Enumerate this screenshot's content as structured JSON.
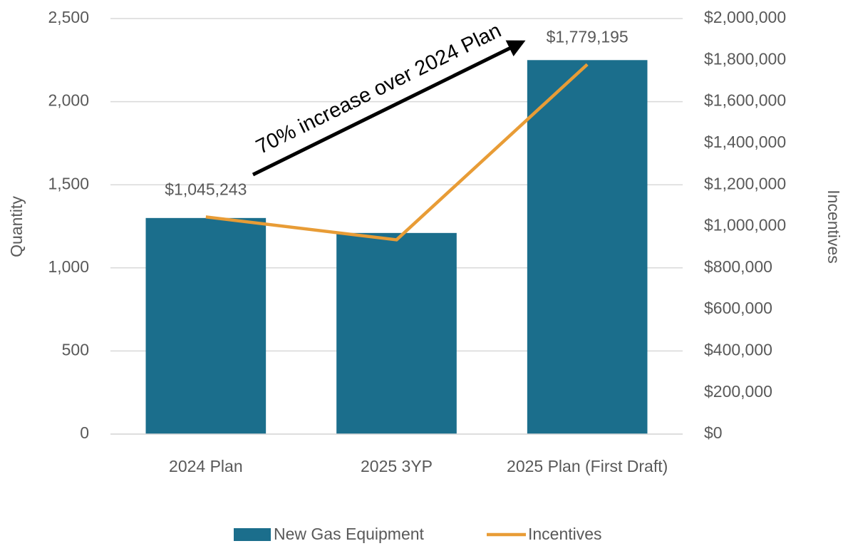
{
  "chart_data": {
    "type": "bar",
    "categories": [
      "2024 Plan",
      "2025 3YP",
      "2025 Plan (First Draft)"
    ],
    "series": [
      {
        "name": "New Gas Equipment",
        "color": "#1b6e8c",
        "values": [
          1300,
          1210,
          2250
        ]
      },
      {
        "name": "Incentives",
        "color": "#e89c36",
        "axis": "y2",
        "type": "line",
        "values": [
          1045243,
          935000,
          1779195
        ],
        "value_labels": [
          "$1,045,243",
          null,
          "$1,779,195"
        ]
      }
    ],
    "ylabel": "Quantity",
    "y2label": "Incentives",
    "ylim": [
      0,
      2500
    ],
    "yticks": [
      0,
      500,
      {
        "value": 1000,
        "label": "1,000"
      },
      {
        "value": 1500,
        "label": "1,500"
      },
      {
        "value": 2000,
        "label": "2,000"
      },
      {
        "value": 2500,
        "label": "2,500"
      }
    ],
    "y2lim": [
      0,
      2000000
    ],
    "y2ticks": [
      {
        "value": 0,
        "label": "$0"
      },
      {
        "value": 200000,
        "label": "$200,000"
      },
      {
        "value": 400000,
        "label": "$400,000"
      },
      {
        "value": 600000,
        "label": "$600,000"
      },
      {
        "value": 800000,
        "label": "$800,000"
      },
      {
        "value": 1000000,
        "label": "$1,000,000"
      },
      {
        "value": 1200000,
        "label": "$1,200,000"
      },
      {
        "value": 1400000,
        "label": "$1,400,000"
      },
      {
        "value": 1600000,
        "label": "$1,600,000"
      },
      {
        "value": 1800000,
        "label": "$1,800,000"
      },
      {
        "value": 2000000,
        "label": "$2,000,000"
      }
    ],
    "annotation": "70% increase over 2024 Plan",
    "grid": true,
    "legend": "bottom"
  }
}
